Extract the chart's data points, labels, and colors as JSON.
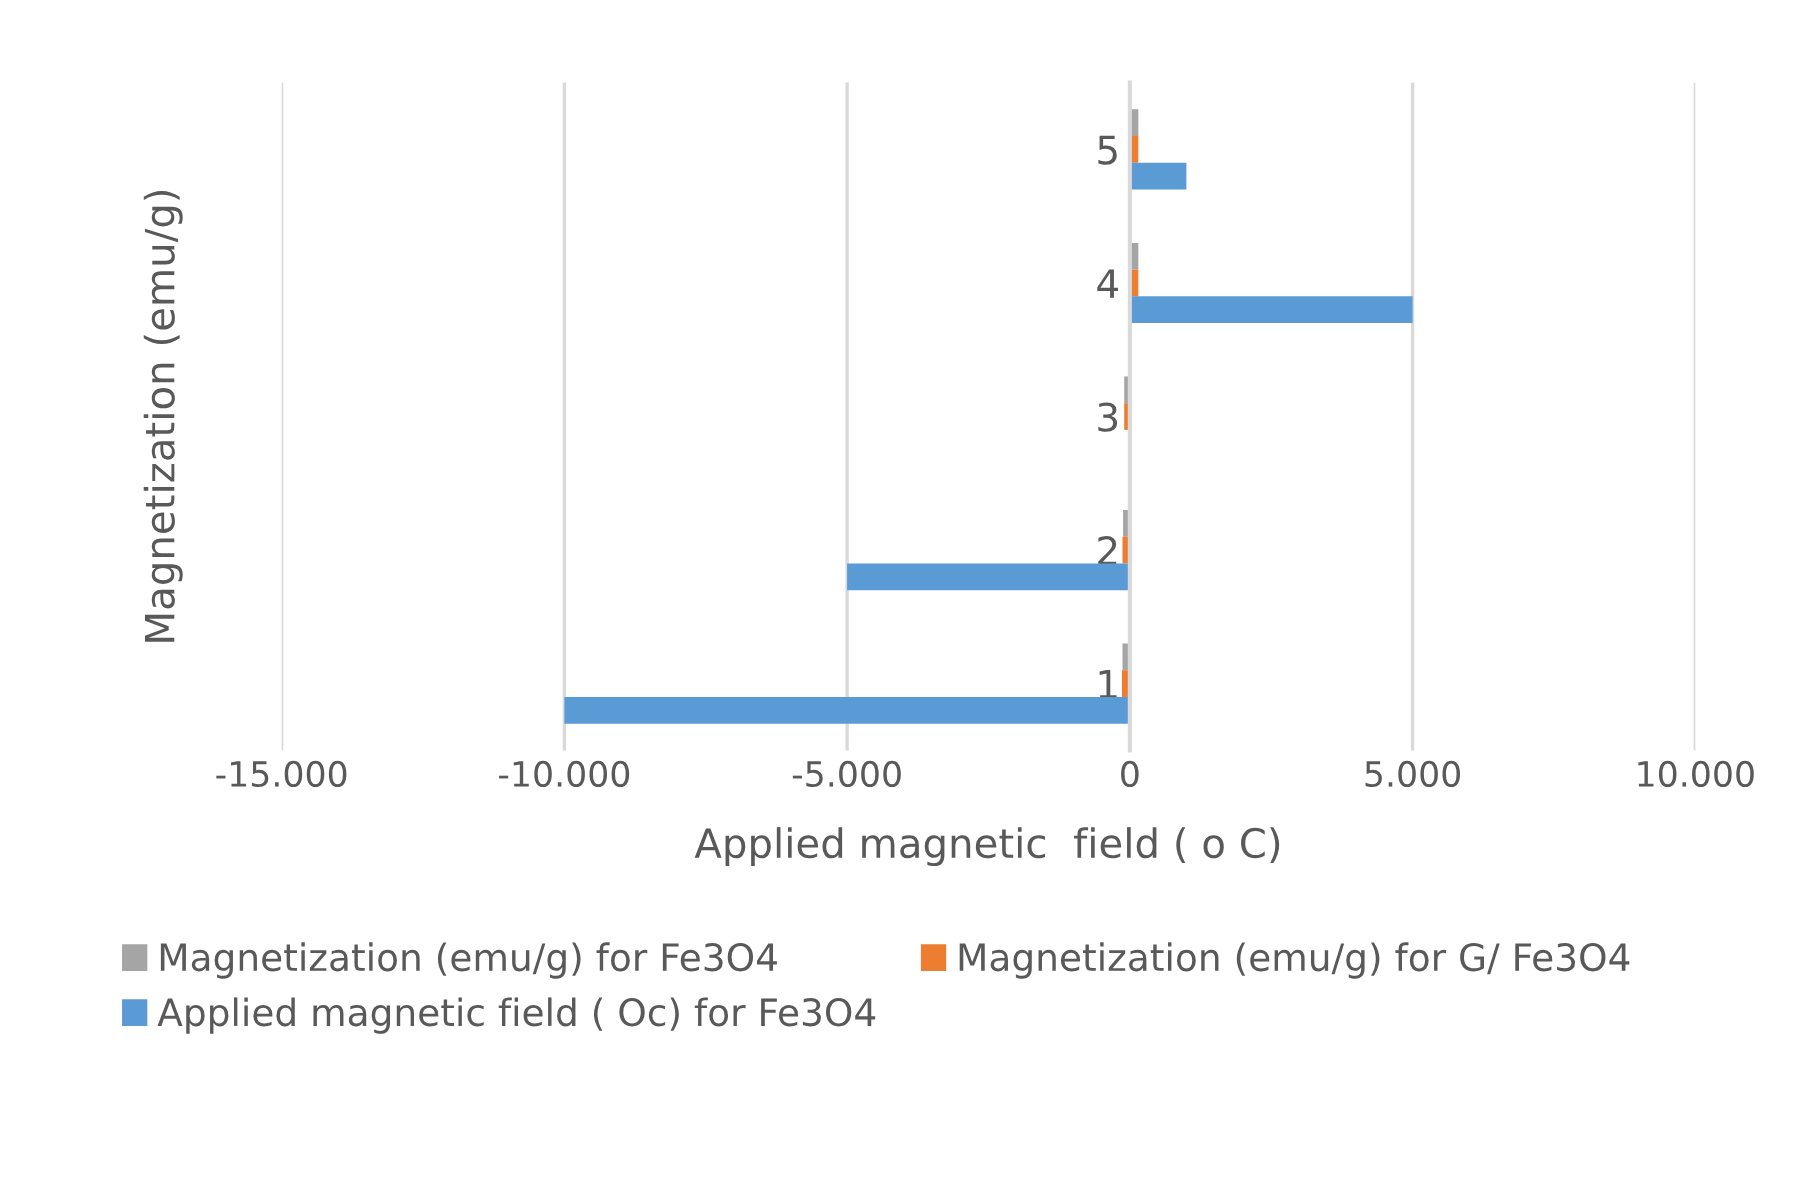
{
  "chart_data": {
    "type": "bar",
    "orientation": "horizontal",
    "xlabel": "Applied magnetic  field ( o C)",
    "ylabel": "Magnetization (emu/g)",
    "categories": [
      "5",
      "4",
      "3",
      "2",
      "1"
    ],
    "series": [
      {
        "name": "Magnetization (emu/g) for Fe3O4",
        "color": "#a5a5a5",
        "values": [
          150,
          150,
          -100,
          -120,
          -130
        ]
      },
      {
        "name": "Magnetization (emu/g) for G/ Fe3O4",
        "color": "#ed7d31",
        "values": [
          150,
          150,
          -100,
          -130,
          -140
        ]
      },
      {
        "name": "Applied magnetic field ( Oc) for Fe3O4",
        "color": "#5b9bd5",
        "values": [
          1000,
          5000,
          0,
          -5000,
          -10000
        ]
      }
    ],
    "xlim": [
      -15000,
      10000
    ],
    "xticks": [
      {
        "value": -15000,
        "label": "-15.000"
      },
      {
        "value": -10000,
        "label": "-10.000"
      },
      {
        "value": -5000,
        "label": "-5.000"
      },
      0,
      {
        "value": 5000,
        "label": "5.000"
      },
      {
        "value": 10000,
        "label": "10.000"
      }
    ],
    "grid": "x",
    "legend": "bottom"
  }
}
